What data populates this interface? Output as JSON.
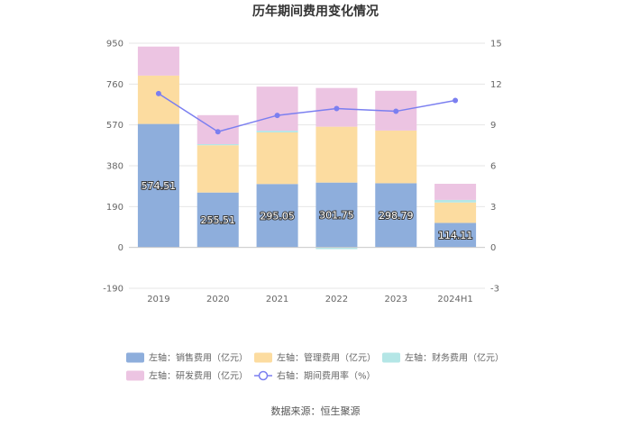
{
  "chart_data": {
    "type": "bar",
    "title": "历年期间费用变化情况",
    "categories": [
      "2019",
      "2020",
      "2021",
      "2022",
      "2023",
      "2024H1"
    ],
    "stacked": true,
    "left_axis": {
      "ticks": [
        -190,
        0,
        190,
        380,
        570,
        760,
        950
      ],
      "ylim": [
        -190,
        950
      ]
    },
    "right_axis": {
      "ticks": [
        -3,
        0,
        3,
        6,
        9,
        12,
        15
      ],
      "ylim": [
        -3,
        15
      ]
    },
    "series": [
      {
        "name": "左轴：销售费用（亿元）",
        "axis": "left",
        "type": "bar",
        "color": "#8eaedc",
        "values": [
          574.51,
          255.51,
          295.05,
          301.75,
          298.79,
          114.11
        ],
        "labels": [
          "574.51",
          "255.51",
          "295.05",
          "301.75",
          "298.79",
          "114.11"
        ]
      },
      {
        "name": "左轴：管理费用（亿元）",
        "axis": "left",
        "type": "bar",
        "color": "#fcdca0",
        "values": [
          225,
          220,
          240,
          260,
          245,
          95
        ]
      },
      {
        "name": "左轴：财务费用（亿元）",
        "axis": "left",
        "type": "bar",
        "color": "#b4e6e6",
        "values": [
          0,
          5,
          8,
          -8,
          0,
          12
        ]
      },
      {
        "name": "左轴：研发费用（亿元）",
        "axis": "left",
        "type": "bar",
        "color": "#ecc4e2",
        "values": [
          135,
          135,
          205,
          180,
          185,
          75
        ]
      },
      {
        "name": "右轴：期间费用率（%）",
        "axis": "right",
        "type": "line",
        "color": "#7b7ff0",
        "values": [
          11.3,
          8.5,
          9.7,
          10.2,
          10.0,
          10.8
        ]
      }
    ],
    "legend_position": "bottom",
    "grid": true,
    "source": "数据来源：恒生聚源"
  }
}
